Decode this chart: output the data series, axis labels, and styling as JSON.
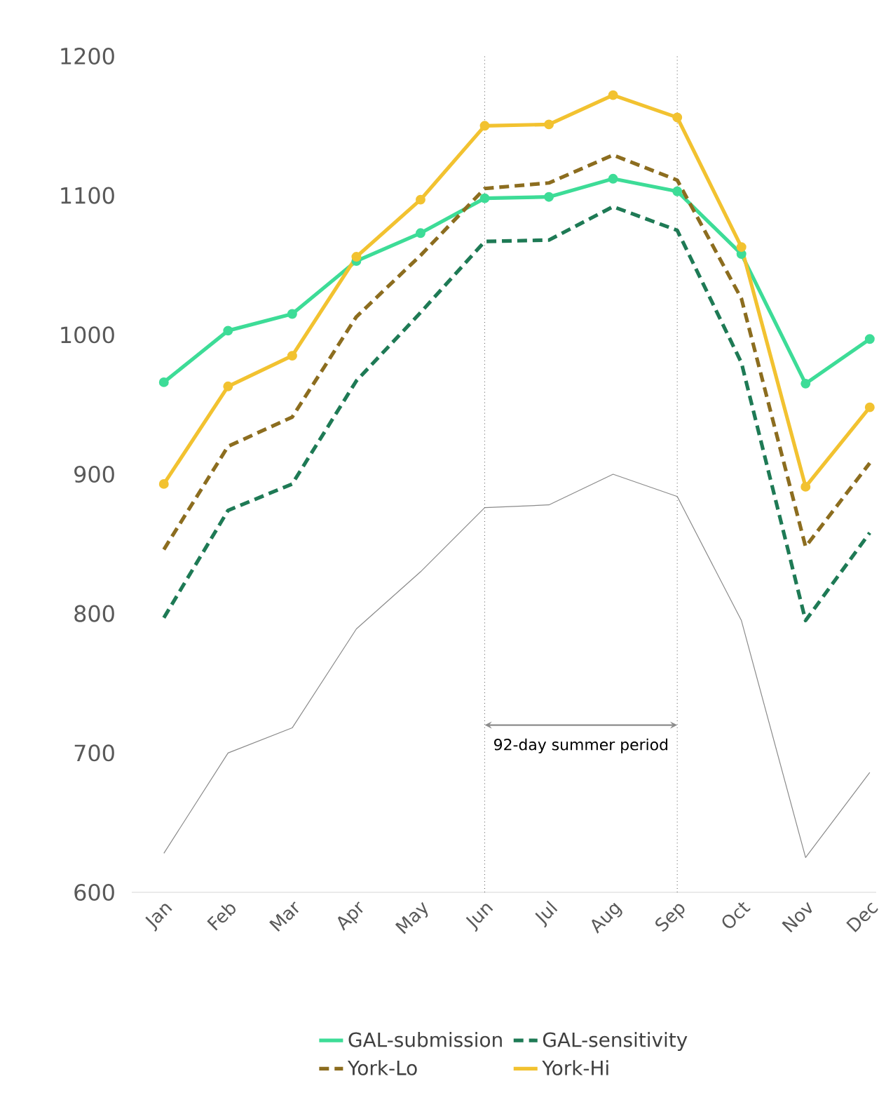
{
  "chart_data": {
    "type": "line",
    "categories": [
      "Jan",
      "Feb",
      "Mar",
      "Apr",
      "May",
      "Jun",
      "Jul",
      "Aug",
      "Sep",
      "Oct",
      "Nov",
      "Dec"
    ],
    "series": [
      {
        "name": "GAL-submission",
        "color": "#3ddc97",
        "marker": "circle",
        "line_style": "solid",
        "values": [
          966,
          1003,
          1015,
          1053,
          1073,
          1098,
          1099,
          1112,
          1103,
          1058,
          965,
          997
        ]
      },
      {
        "name": "GAL-sensitivity",
        "color": "#1e7a55",
        "marker": "none",
        "line_style": "dashed",
        "values": [
          797,
          874,
          893,
          967,
          1016,
          1067,
          1068,
          1092,
          1075,
          980,
          795,
          858
        ]
      },
      {
        "name": "York-Lo",
        "color": "#8c6d1f",
        "marker": "none",
        "line_style": "dashed",
        "values": [
          846,
          920,
          941,
          1013,
          1057,
          1105,
          1109,
          1129,
          1111,
          1026,
          848,
          908
        ]
      },
      {
        "name": "York-Hi",
        "color": "#f2c230",
        "marker": "circle",
        "line_style": "solid",
        "values": [
          893,
          963,
          985,
          1056,
          1097,
          1150,
          1151,
          1172,
          1156,
          1063,
          891,
          948
        ]
      },
      {
        "color": "#8a8a8a",
        "marker": "none",
        "line_style": "solid",
        "values": [
          628,
          700,
          718,
          789,
          830,
          876,
          878,
          900,
          884,
          795,
          625,
          686
        ]
      }
    ],
    "ylim": [
      600,
      1200
    ],
    "yticks": [
      600,
      700,
      800,
      900,
      1000,
      1100,
      1200
    ],
    "grid": false,
    "legend": "bottom",
    "ref_lines": [
      {
        "axis": "x",
        "value": "Jun",
        "color": "#555555",
        "line_style": "dotted"
      },
      {
        "axis": "x",
        "value": "Sep",
        "color": "#555555",
        "line_style": "dotted"
      }
    ],
    "annotations": [
      "92-day summer period"
    ]
  }
}
